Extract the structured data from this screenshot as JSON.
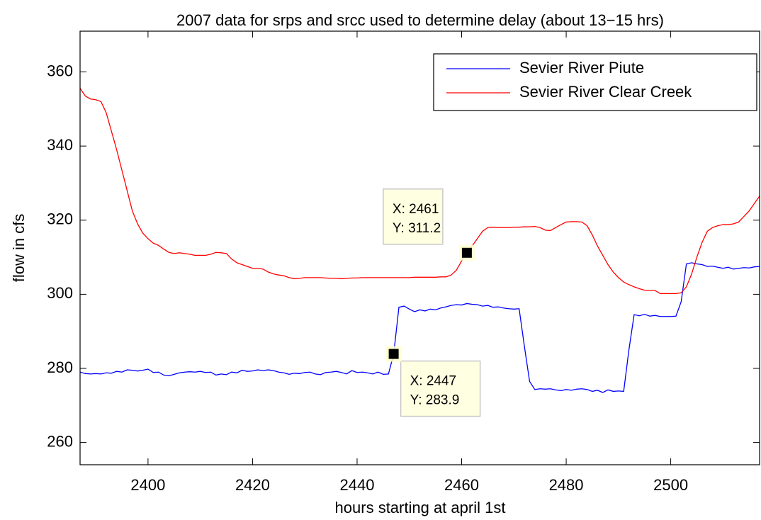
{
  "chart_data": {
    "type": "line",
    "title": "2007 data for srps and srcc used to determine delay (about 13−15 hrs)",
    "x_label": "hours starting at april 1st",
    "y_label": "flow in cfs",
    "x": [
      2387,
      2388,
      2389,
      2390,
      2391,
      2392,
      2393,
      2394,
      2395,
      2396,
      2397,
      2398,
      2399,
      2400,
      2401,
      2402,
      2403,
      2404,
      2405,
      2406,
      2407,
      2408,
      2409,
      2410,
      2411,
      2412,
      2413,
      2414,
      2415,
      2416,
      2417,
      2418,
      2419,
      2420,
      2421,
      2422,
      2423,
      2424,
      2425,
      2426,
      2427,
      2428,
      2429,
      2430,
      2431,
      2432,
      2433,
      2434,
      2435,
      2436,
      2437,
      2438,
      2439,
      2440,
      2441,
      2442,
      2443,
      2444,
      2445,
      2446,
      2447,
      2448,
      2449,
      2450,
      2451,
      2452,
      2453,
      2454,
      2455,
      2456,
      2457,
      2458,
      2459,
      2460,
      2461,
      2462,
      2463,
      2464,
      2465,
      2466,
      2467,
      2468,
      2469,
      2470,
      2471,
      2472,
      2473,
      2474,
      2475,
      2476,
      2477,
      2478,
      2479,
      2480,
      2481,
      2482,
      2483,
      2484,
      2485,
      2486,
      2487,
      2488,
      2489,
      2490,
      2491,
      2492,
      2493,
      2494,
      2495,
      2496,
      2497,
      2498,
      2499,
      2500,
      2501,
      2502,
      2503,
      2504,
      2505,
      2506,
      2507,
      2508,
      2509,
      2510,
      2511,
      2512,
      2513,
      2514,
      2515,
      2516,
      2517
    ],
    "series": [
      {
        "name": "Sevier River Piute",
        "color": "#0000ff",
        "values": [
          279,
          278.6,
          278.5,
          278.6,
          278.5,
          278.8,
          278.7,
          279.2,
          279,
          279.6,
          279.5,
          279.3,
          279.5,
          279.8,
          278.9,
          279,
          278.2,
          278,
          278.4,
          278.8,
          279,
          279.1,
          279,
          279.2,
          278.9,
          279,
          278.2,
          278.5,
          278.3,
          279,
          278.8,
          279.5,
          279.2,
          279.3,
          279.6,
          279.4,
          279.6,
          279.4,
          279,
          278.8,
          278.4,
          278.7,
          278.6,
          278.9,
          279,
          278.5,
          278.3,
          278.9,
          279,
          279.2,
          278.9,
          278.5,
          279.4,
          278.9,
          279,
          278.8,
          278.5,
          279,
          278.4,
          278.5,
          283.9,
          296.5,
          296.8,
          296,
          295.3,
          295.8,
          295.5,
          296,
          295.8,
          296.3,
          296.6,
          297,
          297.2,
          297.1,
          297.5,
          297.3,
          297.2,
          296.8,
          297,
          296.5,
          296.6,
          296.3,
          296.1,
          296,
          296.1,
          286,
          276.5,
          274.3,
          274.5,
          274.4,
          274.5,
          274.2,
          274,
          274.3,
          274.1,
          274.4,
          274.5,
          274.3,
          273.8,
          274.1,
          273.5,
          274.2,
          273.8,
          273.9,
          273.8,
          285,
          294.5,
          294.2,
          294.6,
          294.1,
          294.3,
          294,
          294,
          294,
          294.1,
          298,
          308.2,
          308.5,
          308.2,
          308,
          307.5,
          307.6,
          307.3,
          307,
          307.3,
          306.8,
          307,
          307.2,
          307.1,
          307.4,
          307.5
        ]
      },
      {
        "name": "Sevier River Clear Creek",
        "color": "#ff0000",
        "values": [
          355.6,
          353.5,
          352.7,
          352.5,
          352,
          349,
          344,
          339,
          333.5,
          328,
          322.5,
          319,
          316.5,
          315,
          313.8,
          313.2,
          312.2,
          311.3,
          311,
          311.2,
          311,
          310.8,
          310.5,
          310.5,
          310.5,
          310.8,
          311.3,
          311.2,
          311,
          309.5,
          308.5,
          308,
          307.5,
          307,
          307,
          306.8,
          306,
          305.5,
          305.2,
          305,
          304.5,
          304.2,
          304.3,
          304.5,
          304.5,
          304.5,
          304.5,
          304.4,
          304.3,
          304.3,
          304.2,
          304.3,
          304.4,
          304.4,
          304.5,
          304.5,
          304.5,
          304.5,
          304.5,
          304.5,
          304.5,
          304.5,
          304.5,
          304.5,
          304.6,
          304.6,
          304.6,
          304.6,
          304.6,
          304.7,
          304.7,
          305.2,
          306.5,
          309,
          311.2,
          313,
          315,
          317,
          318,
          318.1,
          318,
          318,
          318,
          318.1,
          318.1,
          318.2,
          318.2,
          318.3,
          318,
          317.3,
          317.2,
          318,
          318.8,
          319.5,
          319.6,
          319.6,
          319.5,
          318.5,
          316,
          313,
          310.5,
          308,
          306,
          304.5,
          303.3,
          302.6,
          302,
          301.5,
          301.1,
          301,
          301,
          300.2,
          300.2,
          300.2,
          300.2,
          300.4,
          302,
          305.5,
          310,
          314,
          317,
          318,
          318.5,
          318.8,
          318.8,
          319,
          319.5,
          321,
          322.5,
          324.5,
          326.5
        ]
      }
    ],
    "data_tips": [
      {
        "x": 2461,
        "y": 311.2,
        "x_text": "X: 2461",
        "y_text": "Y: 311.2"
      },
      {
        "x": 2447,
        "y": 283.9,
        "x_text": "X: 2447",
        "y_text": "Y: 283.9"
      }
    ],
    "xlim": [
      2387,
      2517
    ],
    "ylim": [
      254,
      371
    ],
    "xticks": [
      2400,
      2420,
      2440,
      2460,
      2480,
      2500
    ],
    "yticks": [
      260,
      280,
      300,
      320,
      340,
      360
    ],
    "grid": false,
    "legend": "northeast"
  }
}
